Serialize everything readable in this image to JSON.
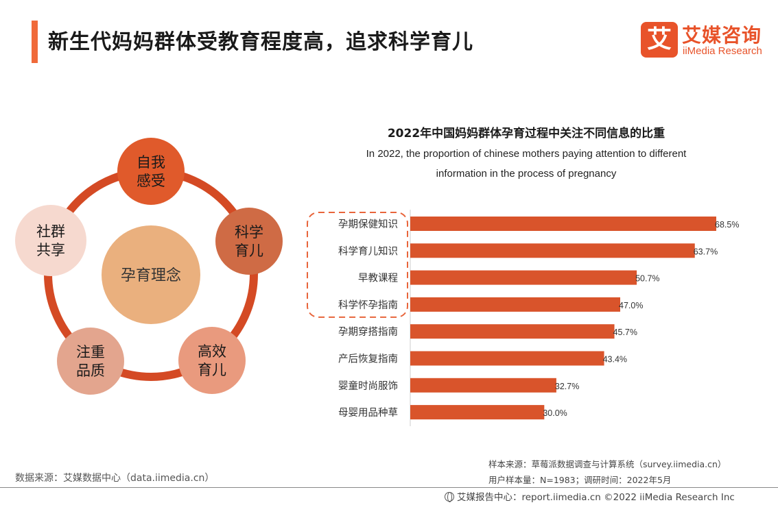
{
  "header": {
    "title": "新生代妈妈群体受教育程度高，追求科学育儿",
    "accent_color": "#f06a3a"
  },
  "logo": {
    "mark": "艾",
    "name_cn": "艾媒咨询",
    "name_en": "iiMedia Research",
    "color": "#e8532a"
  },
  "diagram": {
    "center_label": "孕育理念",
    "nodes": [
      {
        "line1": "自我",
        "line2": "感受",
        "color": "#e05a2b"
      },
      {
        "line1": "科学",
        "line2": "育儿",
        "color": "#cf6b45"
      },
      {
        "line1": "高效",
        "line2": "育儿",
        "color": "#e99a7e"
      },
      {
        "line1": "注重",
        "line2": "品质",
        "color": "#e3a58e"
      },
      {
        "line1": "社群",
        "line2": "共享",
        "color": "#f6d9cf"
      }
    ]
  },
  "chart_data": {
    "type": "bar",
    "orientation": "horizontal",
    "title": "2022年中国妈妈群体孕育过程中关注不同信息的比重",
    "subtitle_line1": "In 2022, the proportion of chinese mothers paying attention to different",
    "subtitle_line2": "information in the process of pregnancy",
    "categories": [
      "孕期保健知识",
      "科学育儿知识",
      "早教课程",
      "科学怀孕指南",
      "孕期穿搭指南",
      "产后恢复指南",
      "婴童时尚服饰",
      "母婴用品种草"
    ],
    "values": [
      68.5,
      63.7,
      50.7,
      47.0,
      45.7,
      43.4,
      32.7,
      30.0
    ],
    "value_labels": [
      "68.5%",
      "63.7%",
      "50.7%",
      "47.0%",
      "45.7%",
      "43.4%",
      "32.7%",
      "30.0%"
    ],
    "highlighted_count": 4,
    "xlim": [
      0,
      68.5
    ],
    "bar_color": "#d9542b"
  },
  "footer": {
    "data_source": "数据来源：艾媒数据中心（data.iimedia.cn）",
    "sample_source": "样本来源：草莓派数据调查与计算系统（survey.iimedia.cn）",
    "sample_size": "用户样本量：N=1983；调研时间：2022年5月",
    "report_center": "艾媒报告中心：report.iimedia.cn   ©2022  iiMedia Research  Inc"
  }
}
